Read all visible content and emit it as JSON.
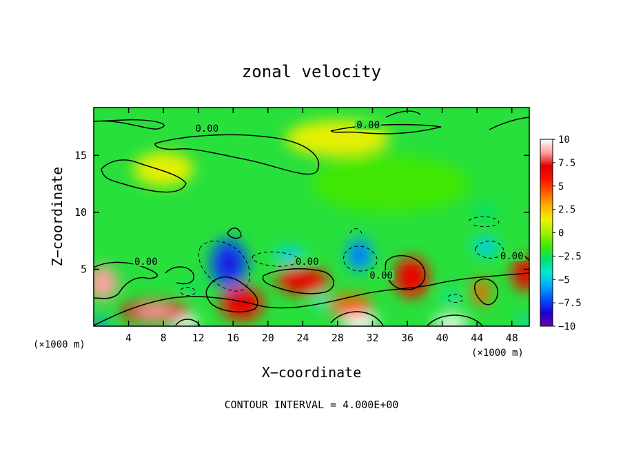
{
  "chart_data": {
    "type": "heatmap",
    "title": "zonal velocity",
    "xlabel": "X−coordinate",
    "ylabel": "Z−coordinate",
    "x_unit_left": "(×1000 m)",
    "x_unit_right": "(×1000 m)",
    "xlim": [
      0,
      50
    ],
    "ylim": [
      0,
      19.2
    ],
    "x_ticks": [
      4,
      8,
      12,
      16,
      20,
      24,
      28,
      32,
      36,
      40,
      44,
      48
    ],
    "x_tick_labels": [
      "4",
      "8",
      "12",
      "16",
      "20",
      "24",
      "28",
      "32",
      "36",
      "40",
      "44",
      "48"
    ],
    "y_ticks": [
      5,
      10,
      15
    ],
    "y_tick_labels": [
      "5",
      "10",
      "15"
    ],
    "colorbar": {
      "range": [
        -10,
        10
      ],
      "ticks": [
        10,
        7.5,
        5,
        2.5,
        0,
        -2.5,
        -5,
        -7.5,
        -10
      ],
      "tick_labels": [
        "10",
        "7.5",
        "5",
        "2.5",
        "0",
        "−2.5",
        "−5",
        "−7.5",
        "−10"
      ],
      "colors": [
        "#6a00a8",
        "#1a00d8",
        "#0050ff",
        "#00a8ff",
        "#00e8d0",
        "#00e070",
        "#40e800",
        "#a0f000",
        "#f0f000",
        "#ffb000",
        "#ff6000",
        "#ff1000",
        "#e00000",
        "#ffa0a0",
        "#ffffff"
      ]
    },
    "contour_labels": [
      {
        "text": "0.00",
        "x": 13,
        "z": 17.2
      },
      {
        "text": "0.00",
        "x": 31.5,
        "z": 17.5
      },
      {
        "text": "0.00",
        "x": 6,
        "z": 5.5
      },
      {
        "text": "0.00",
        "x": 24.5,
        "z": 5.5
      },
      {
        "text": "0.00",
        "x": 33,
        "z": 4.3
      },
      {
        "text": "0.00",
        "x": 48,
        "z": 6.0
      }
    ],
    "annotation": "CONTOUR INTERVAL = 4.000E+00",
    "data_source": "approximate features",
    "features": [
      {
        "x": 30.5,
        "z": 0.4,
        "value": 10,
        "rx": 2.2,
        "rz": 0.8
      },
      {
        "x": 10.5,
        "z": 0.3,
        "value": 10,
        "rx": 1.5,
        "rz": 0.7
      },
      {
        "x": 41.0,
        "z": 0.3,
        "value": 10,
        "rx": 2.0,
        "rz": 0.7
      },
      {
        "x": 1.0,
        "z": 3.8,
        "value": 8,
        "rx": 1.8,
        "rz": 1.5
      },
      {
        "x": 7.0,
        "z": 1.3,
        "value": 7,
        "rx": 4.0,
        "rz": 1.0
      },
      {
        "x": 17.0,
        "z": 2.0,
        "value": 6,
        "rx": 2.5,
        "rz": 1.5
      },
      {
        "x": 24.0,
        "z": 4.0,
        "value": 6,
        "rx": 3.0,
        "rz": 1.2
      },
      {
        "x": 36.5,
        "z": 4.3,
        "value": 6,
        "rx": 2.0,
        "rz": 1.8
      },
      {
        "x": 49.5,
        "z": 4.6,
        "value": 6,
        "rx": 1.5,
        "rz": 1.5
      },
      {
        "x": 44.5,
        "z": 3.0,
        "value": 4,
        "rx": 1.0,
        "rz": 1.2
      },
      {
        "x": 29.5,
        "z": 1.8,
        "value": 4,
        "rx": 2.5,
        "rz": 1.0
      },
      {
        "x": 15.5,
        "z": 5.5,
        "value": -7,
        "rx": 2.2,
        "rz": 2.2
      },
      {
        "x": 30.5,
        "z": 6.3,
        "value": -6,
        "rx": 1.5,
        "rz": 1.5
      },
      {
        "x": 45.0,
        "z": 7.0,
        "value": -5,
        "rx": 1.5,
        "rz": 0.9
      },
      {
        "x": 22.5,
        "z": 6.2,
        "value": -5,
        "rx": 1.8,
        "rz": 0.8
      },
      {
        "x": 45.0,
        "z": 10.0,
        "value": -3,
        "rx": 1.4,
        "rz": 0.7
      },
      {
        "x": 26.0,
        "z": 2.2,
        "value": -4,
        "rx": 1.0,
        "rz": 0.6
      },
      {
        "x": 41.0,
        "z": 2.5,
        "value": -4,
        "rx": 0.9,
        "rz": 0.6
      },
      {
        "x": 11.0,
        "z": 3.3,
        "value": -3,
        "rx": 1.0,
        "rz": 0.6
      },
      {
        "x": 0.8,
        "z": 0.3,
        "value": -6,
        "rx": 1.0,
        "rz": 0.5
      },
      {
        "x": 49.5,
        "z": 0.4,
        "value": -5,
        "rx": 0.8,
        "rz": 0.5
      },
      {
        "x": 28.0,
        "z": 16.5,
        "value": 1,
        "rx": 6.0,
        "rz": 1.6
      },
      {
        "x": 8.0,
        "z": 13.8,
        "value": 1,
        "rx": 3.5,
        "rz": 1.5
      },
      {
        "x": 34.0,
        "z": 12.5,
        "value": -1.5,
        "rx": 9.0,
        "rz": 2.5
      }
    ]
  }
}
